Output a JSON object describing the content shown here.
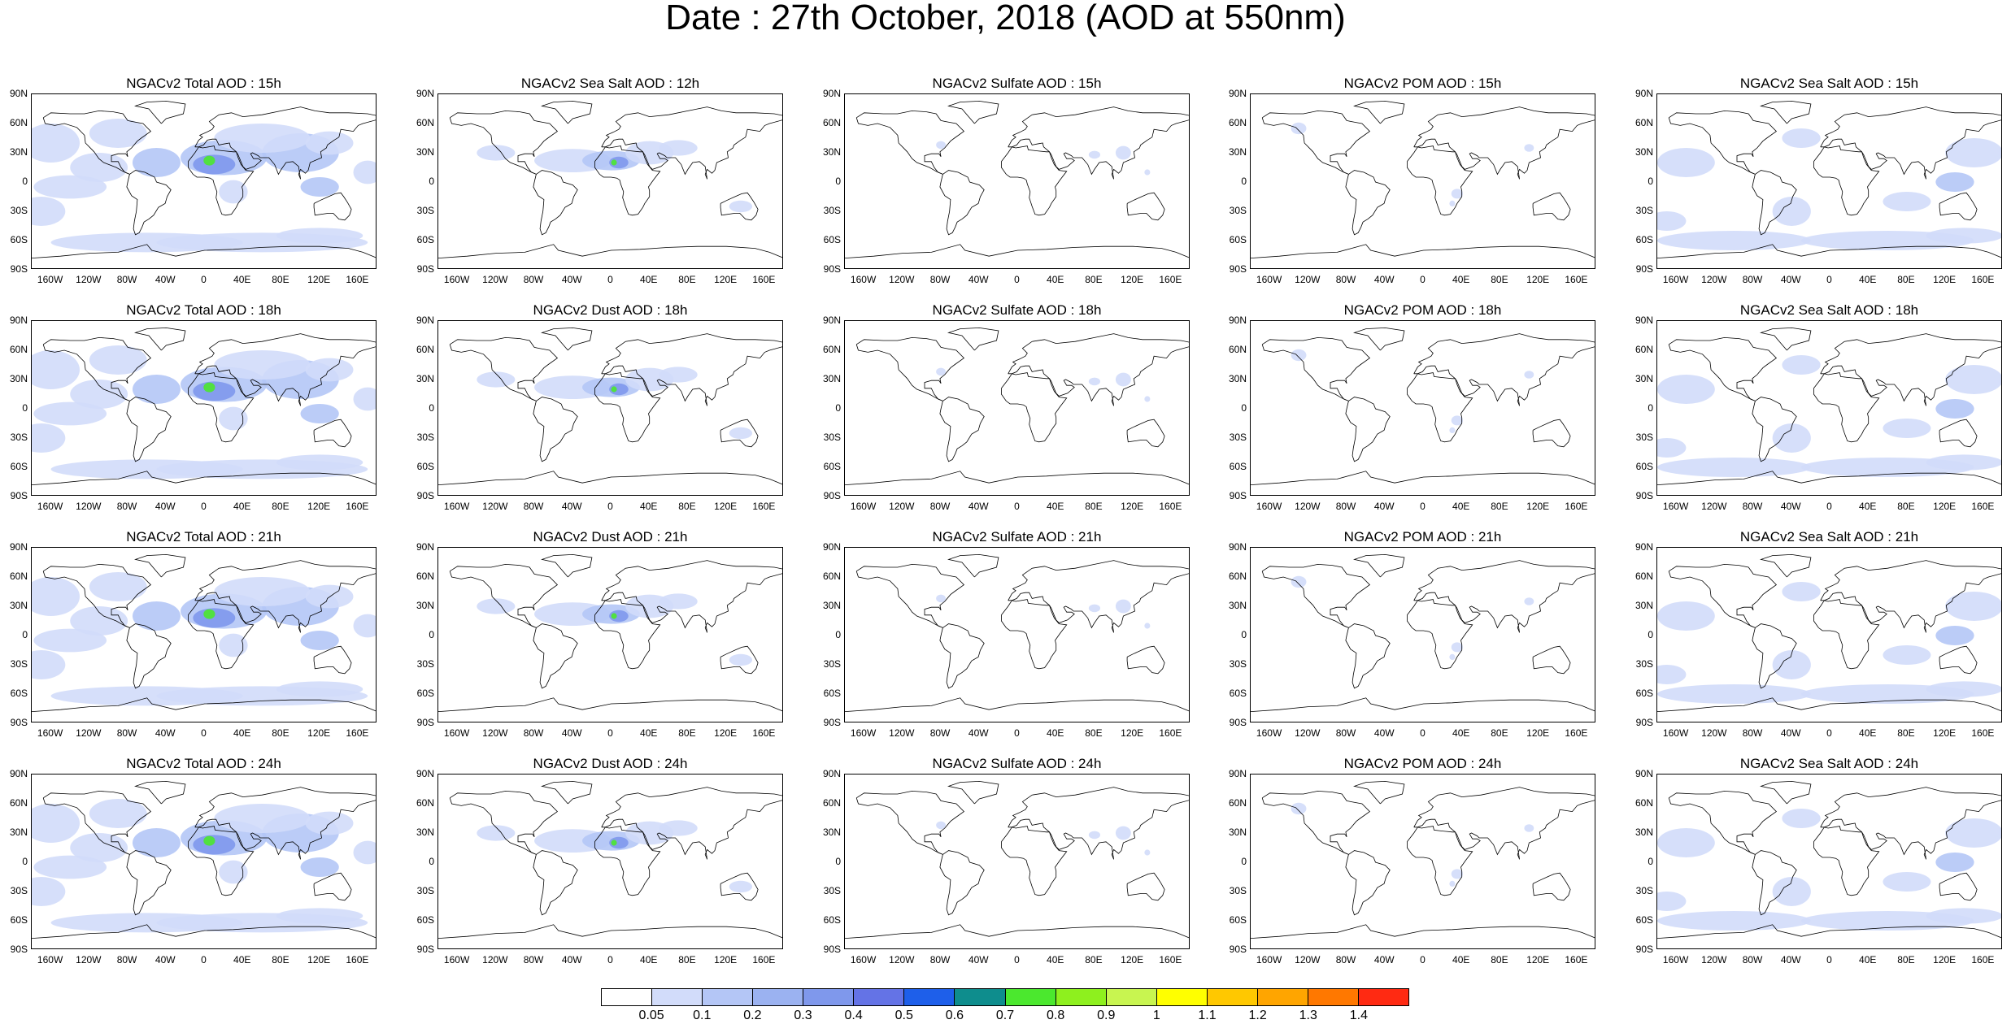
{
  "title": "Date : 27th October, 2018 (AOD at 550nm)",
  "lat_labels": [
    "90N",
    "60N",
    "30N",
    "0",
    "30S",
    "60S",
    "90S"
  ],
  "lon_labels": [
    "160W",
    "120W",
    "80W",
    "40W",
    "0",
    "40E",
    "80E",
    "120E",
    "160E"
  ],
  "panel_titles": [
    "NGACv2 Total AOD : 15h",
    "NGACv2 Sea Salt  AOD : 12h",
    "NGACv2 Sulfate AOD : 15h",
    "NGACv2 POM AOD : 15h",
    "NGACv2 Sea Salt  AOD : 15h",
    "NGACv2 Total AOD : 18h",
    "NGACv2 Dust AOD : 18h",
    "NGACv2 Sulfate AOD : 18h",
    "NGACv2 POM AOD : 18h",
    "NGACv2 Sea Salt  AOD : 18h",
    "NGACv2 Total AOD : 21h",
    "NGACv2 Dust AOD : 21h",
    "NGACv2 Sulfate AOD : 21h",
    "NGACv2 POM AOD : 21h",
    "NGACv2 Sea Salt  AOD : 21h",
    "NGACv2 Total AOD : 24h",
    "NGACv2 Dust AOD : 24h",
    "NGACv2 Sulfate AOD : 24h",
    "NGACv2 POM AOD : 24h",
    "NGACv2 Sea Salt  AOD : 24h"
  ],
  "colorbar": {
    "levels": [
      "0.05",
      "0.1",
      "0.2",
      "0.3",
      "0.4",
      "0.5",
      "0.6",
      "0.7",
      "0.8",
      "0.9",
      "1",
      "1.1",
      "1.2",
      "1.3",
      "1.4"
    ],
    "colors": [
      "#ffffff",
      "#d2dcfa",
      "#b4c6f6",
      "#9bb2f1",
      "#7f98ec",
      "#6473e6",
      "#1e5fea",
      "#0e8d8d",
      "#4be82e",
      "#8ef01e",
      "#c8f550",
      "#ffff00",
      "#ffc800",
      "#ffa500",
      "#ff7800",
      "#ff2a12"
    ]
  },
  "field_colors": {
    "light": "#d2dcfa",
    "medium": "#b4c6f6",
    "strong": "#7f98ec",
    "dust_peak": "#4be82e"
  }
}
